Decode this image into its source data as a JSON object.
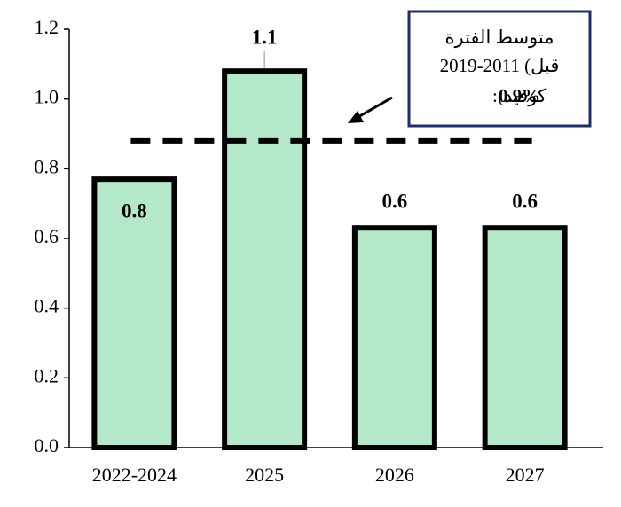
{
  "chart_data": {
    "type": "bar",
    "categories": [
      "2022-2024",
      "2025",
      "2026",
      "2027"
    ],
    "values": [
      0.77,
      1.08,
      0.63,
      0.63
    ],
    "value_labels": [
      "0.8",
      "1.1",
      "0.6",
      "0.6"
    ],
    "color": "#b3e8c8",
    "ylim": [
      0,
      1.2
    ],
    "yticks": [
      {
        "value": 0,
        "label": "0.0"
      },
      0.2,
      0.4,
      0.6,
      0.8,
      {
        "value": 1,
        "label": "1.0"
      },
      1.2
    ],
    "reference_line": {
      "value": 0.88
    },
    "annotation": [
      "متوسط الفترة",
      "2019-2011 (قبل",
      "كوفيد):",
      "0.9%"
    ]
  }
}
